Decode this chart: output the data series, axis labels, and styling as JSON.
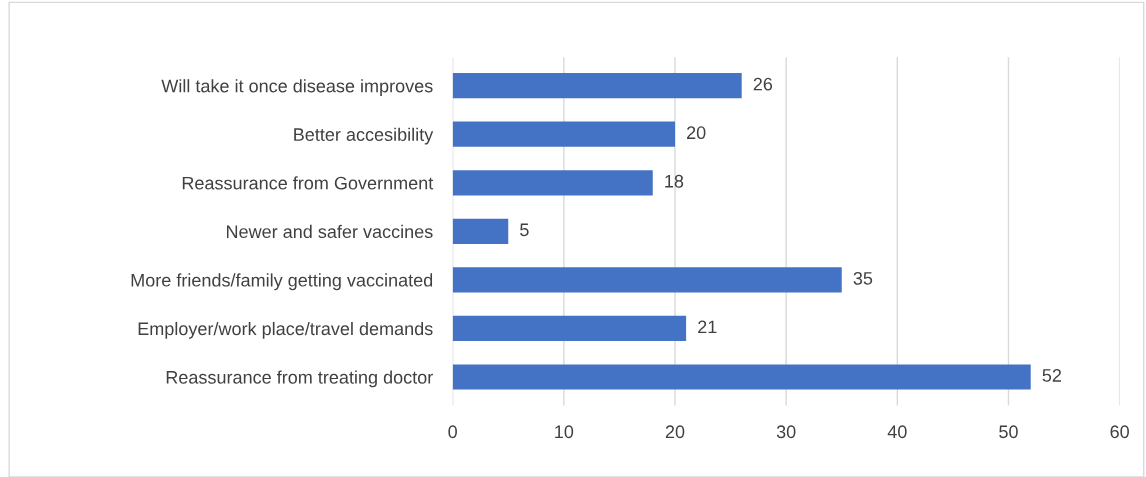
{
  "chart_data": {
    "type": "bar",
    "orientation": "horizontal",
    "categories": [
      "Will take it once disease improves",
      "Better accesibility",
      "Reassurance from Government",
      "Newer and safer vaccines",
      "More friends/family getting vaccinated",
      "Employer/work place/travel demands",
      "Reassurance from treating doctor"
    ],
    "values": [
      26,
      20,
      18,
      5,
      35,
      21,
      52
    ],
    "color": "#4472c4",
    "xlim": [
      0,
      60
    ],
    "xticks": [
      0,
      10,
      20,
      30,
      40,
      50,
      60
    ],
    "grid": "x",
    "data_labels": true
  }
}
